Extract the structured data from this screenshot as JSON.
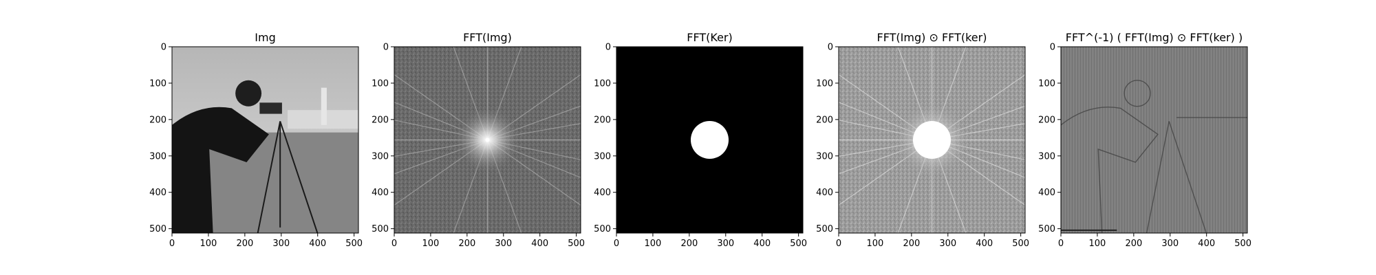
{
  "chart_data": [
    {
      "type": "image",
      "title": "Img",
      "content": "grayscale photograph: man with a camera on a tripod (cameraman)",
      "xlim": [
        0,
        512
      ],
      "ylim": [
        512,
        0
      ],
      "xticks": [
        0,
        100,
        200,
        300,
        400,
        500
      ],
      "yticks": [
        0,
        100,
        200,
        300,
        400,
        500
      ],
      "colormap": "gray",
      "grid": false
    },
    {
      "type": "image",
      "title": "FFT(Img)",
      "content": "log-magnitude Fourier spectrum of the image, centered, bright center with radial streaks",
      "xlim": [
        0,
        512
      ],
      "ylim": [
        512,
        0
      ],
      "xticks": [
        0,
        100,
        200,
        300,
        400,
        500
      ],
      "yticks": [
        0,
        100,
        200,
        300,
        400,
        500
      ],
      "colormap": "gray",
      "grid": false
    },
    {
      "type": "image",
      "title": "FFT(Ker)",
      "content": "black field with a white disk at the center (ideal low-pass mask)",
      "mask_center": [
        256,
        256
      ],
      "mask_radius": 52,
      "xlim": [
        0,
        512
      ],
      "ylim": [
        512,
        0
      ],
      "xticks": [
        0,
        100,
        200,
        300,
        400,
        500
      ],
      "yticks": [
        0,
        100,
        200,
        300,
        400,
        500
      ],
      "colormap": "gray",
      "grid": false
    },
    {
      "type": "image",
      "title": "FFT(Img) ⊙ FFT(ker)",
      "content": "Fourier spectrum with saturated white disk at the center",
      "xlim": [
        0,
        512
      ],
      "ylim": [
        512,
        0
      ],
      "xticks": [
        0,
        100,
        200,
        300,
        400,
        500
      ],
      "yticks": [
        0,
        100,
        200,
        300,
        400,
        500
      ],
      "colormap": "gray",
      "grid": false
    },
    {
      "type": "image",
      "title": "FFT^(-1) ( FFT(Img) ⊙ FFT(ker) )",
      "content": "inverse transform: gray image with ringing edge outlines of the cameraman",
      "xlim": [
        0,
        512
      ],
      "ylim": [
        512,
        0
      ],
      "xticks": [
        0,
        100,
        200,
        300,
        400,
        500
      ],
      "yticks": [
        0,
        100,
        200,
        300,
        400,
        500
      ],
      "colormap": "gray",
      "grid": false
    }
  ],
  "colors": {
    "background": "#ffffff",
    "axes": "#000000",
    "img_sky": "#bdbdbd",
    "img_grass": "#858585",
    "fft_bg": "#6a6a6a",
    "spec_bg": "#9c9c9c",
    "inv_bg": "#7d7d7d",
    "mask_on": "#ffffff",
    "mask_off": "#000000"
  }
}
